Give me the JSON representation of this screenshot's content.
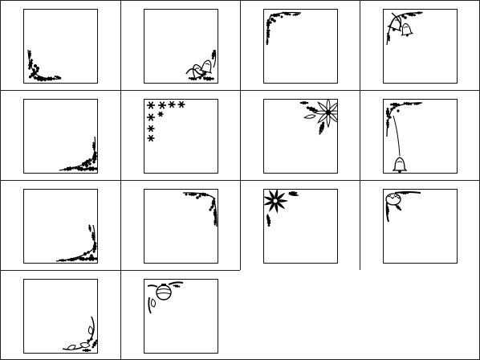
{
  "sheet": {
    "line_color": "#222222",
    "ink_color": "#000000",
    "paper_color": "#ffffff"
  },
  "frames": [
    {
      "id": 1,
      "corner": "bottom-left",
      "motif": "holly"
    },
    {
      "id": 2,
      "corner": "bottom-right",
      "motif": "bells"
    },
    {
      "id": 3,
      "corner": "top-left",
      "motif": "holly-vine"
    },
    {
      "id": 4,
      "corner": "top-left",
      "motif": "bells"
    },
    {
      "id": 5,
      "corner": "bottom-right",
      "motif": "holly"
    },
    {
      "id": 6,
      "corner": "top-left",
      "motif": "snowflakes"
    },
    {
      "id": 7,
      "corner": "top-right",
      "motif": "poinsettia"
    },
    {
      "id": 8,
      "corner": "top-left",
      "motif": "holly-bell"
    },
    {
      "id": 9,
      "corner": "bottom-right",
      "motif": "holly"
    },
    {
      "id": 10,
      "corner": "top-right",
      "motif": "holly-vine"
    },
    {
      "id": 11,
      "corner": "top-left",
      "motif": "poinsettia"
    },
    {
      "id": 12,
      "corner": "top-left",
      "motif": "pinecone"
    },
    {
      "id": 13,
      "corner": "bottom-right",
      "motif": "ribbon"
    },
    {
      "id": 14,
      "corner": "top-left",
      "motif": "ornament-ribbon"
    }
  ]
}
